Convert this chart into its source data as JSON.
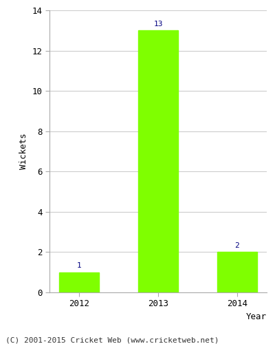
{
  "categories": [
    "2012",
    "2013",
    "2014"
  ],
  "values": [
    1,
    13,
    2
  ],
  "bar_color": "#7FFF00",
  "bar_edge_color": "#7FFF00",
  "value_label_color": "#000080",
  "xlabel": "Year",
  "ylabel": "Wickets",
  "ylim": [
    0,
    14
  ],
  "yticks": [
    0,
    2,
    4,
    6,
    8,
    10,
    12,
    14
  ],
  "grid_color": "#cccccc",
  "background_color": "#ffffff",
  "footer_text": "(C) 2001-2015 Cricket Web (www.cricketweb.net)",
  "value_fontsize": 8,
  "axis_label_fontsize": 9,
  "tick_fontsize": 9,
  "footer_fontsize": 8
}
